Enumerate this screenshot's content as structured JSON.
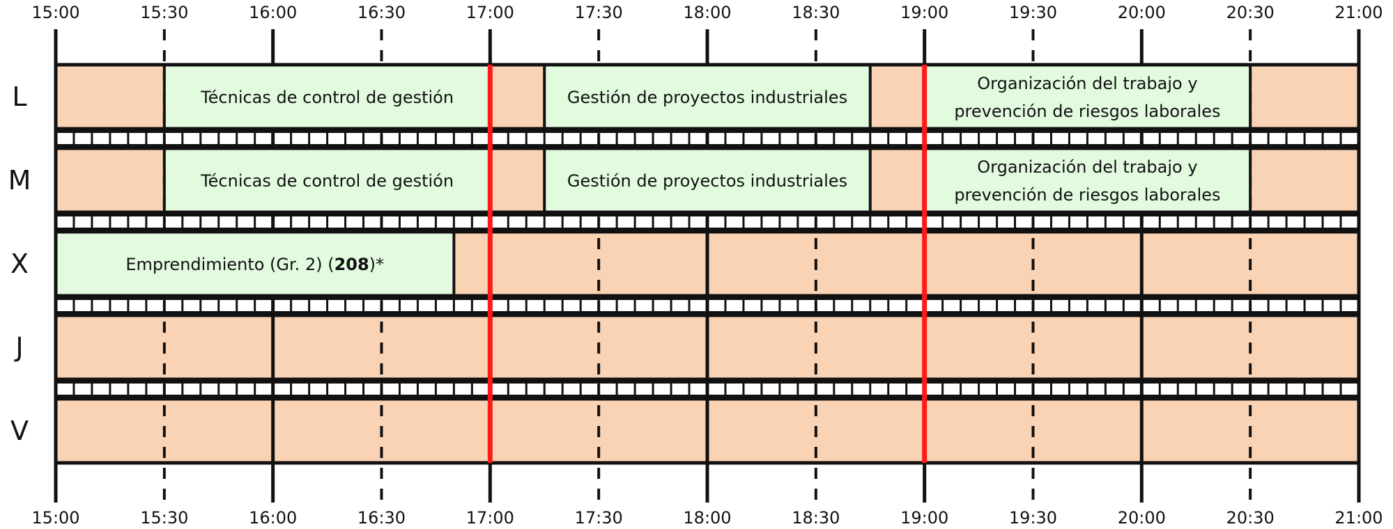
{
  "times_top": [
    "15:00",
    "15:30",
    "16:00",
    "16:30",
    "17:00",
    "17:30",
    "18:00",
    "18:30",
    "19:00",
    "19:30",
    "20:00",
    "20:30",
    "21:00"
  ],
  "times_bottom": [
    "15:00",
    "15:30",
    "16:00",
    "16:30",
    "17:00",
    "17:30",
    "18:00",
    "18:30",
    "19:00",
    "19:30",
    "20:00",
    "20:30",
    "21:00"
  ],
  "days": [
    {
      "key": "L",
      "label": "L",
      "events": [
        {
          "start": "15:30",
          "end": "17:00",
          "lines": [
            [
              {
                "text": "Técnicas de control de gestión"
              }
            ]
          ]
        },
        {
          "start": "17:15",
          "end": "18:45",
          "lines": [
            [
              {
                "text": "Gestión de proyectos industriales"
              }
            ]
          ]
        },
        {
          "start": "19:00",
          "end": "20:30",
          "lines": [
            [
              {
                "text": "Organización del trabajo y"
              }
            ],
            [
              {
                "text": "prevención de riesgos laborales"
              }
            ]
          ]
        }
      ]
    },
    {
      "key": "M",
      "label": "M",
      "events": [
        {
          "start": "15:30",
          "end": "17:00",
          "lines": [
            [
              {
                "text": "Técnicas de control de gestión"
              }
            ]
          ]
        },
        {
          "start": "17:15",
          "end": "18:45",
          "lines": [
            [
              {
                "text": "Gestión de proyectos industriales"
              }
            ]
          ]
        },
        {
          "start": "19:00",
          "end": "20:30",
          "lines": [
            [
              {
                "text": "Organización del trabajo y"
              }
            ],
            [
              {
                "text": "prevención de riesgos laborales"
              }
            ]
          ]
        }
      ]
    },
    {
      "key": "X",
      "label": "X",
      "events": [
        {
          "start": "15:00",
          "end": "16:50",
          "lines": [
            [
              {
                "text": "Emprendimiento (Gr. 2) ("
              },
              {
                "text": "208",
                "bold": true
              },
              {
                "text": ")*"
              }
            ]
          ]
        }
      ]
    },
    {
      "key": "J",
      "label": "J",
      "events": []
    },
    {
      "key": "V",
      "label": "V",
      "events": []
    }
  ],
  "colors": {
    "background_cell": "#FAD3B5",
    "event_fill": "#E2FBDF",
    "grid_line": "#111111",
    "highlight_line": "#FF1A1A",
    "separator_fill": "#FFFFFF"
  },
  "highlight_times": [
    "17:00",
    "19:00"
  ]
}
